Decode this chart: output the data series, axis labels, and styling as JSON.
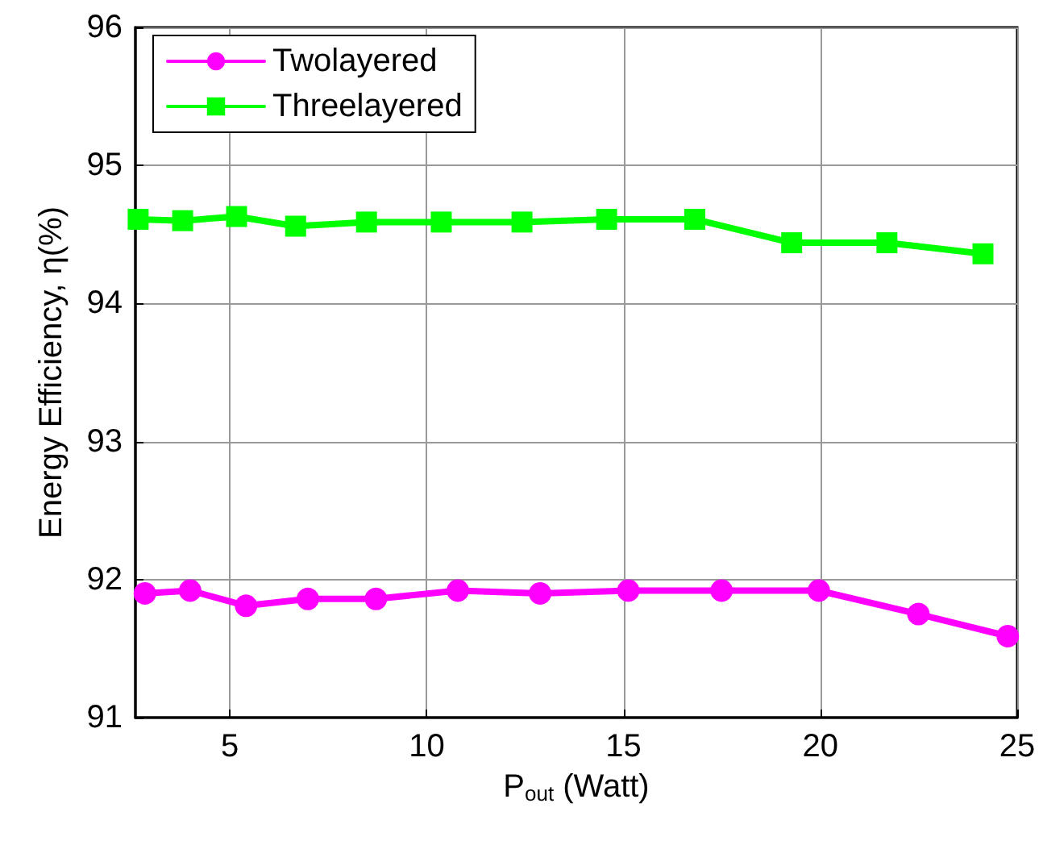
{
  "chart_data": {
    "type": "line",
    "xlabel": "P$_{out}$ (Watt)",
    "ylabel": "Energy Efficiency, η(%)",
    "xlim": [
      2.6,
      25
    ],
    "xticks": [
      5,
      10,
      15,
      20,
      25
    ],
    "ylim": [
      91,
      96
    ],
    "yticks": [
      91,
      92,
      93,
      94,
      95,
      96
    ],
    "grid": true,
    "legend": "top left",
    "line_style": "solid",
    "series": [
      {
        "name": "Twolayered",
        "color": "#ff00ff",
        "marker": "circle",
        "x": [
          2.84,
          3.99,
          5.41,
          6.98,
          8.71,
          10.79,
          12.88,
          15.12,
          17.49,
          19.96,
          22.49,
          24.76
        ],
        "values": [
          91.9,
          91.92,
          91.81,
          91.86,
          91.86,
          91.92,
          91.9,
          91.92,
          91.92,
          91.92,
          91.75,
          91.59
        ]
      },
      {
        "name": "Threelayered",
        "color": "#00ff00",
        "marker": "square",
        "x": [
          2.67,
          3.8,
          5.17,
          6.67,
          8.47,
          10.37,
          12.42,
          14.57,
          16.81,
          19.27,
          21.69,
          24.13
        ],
        "values": [
          94.61,
          94.6,
          94.63,
          94.56,
          94.59,
          94.59,
          94.59,
          94.61,
          94.61,
          94.44,
          94.44,
          94.36
        ]
      }
    ]
  }
}
